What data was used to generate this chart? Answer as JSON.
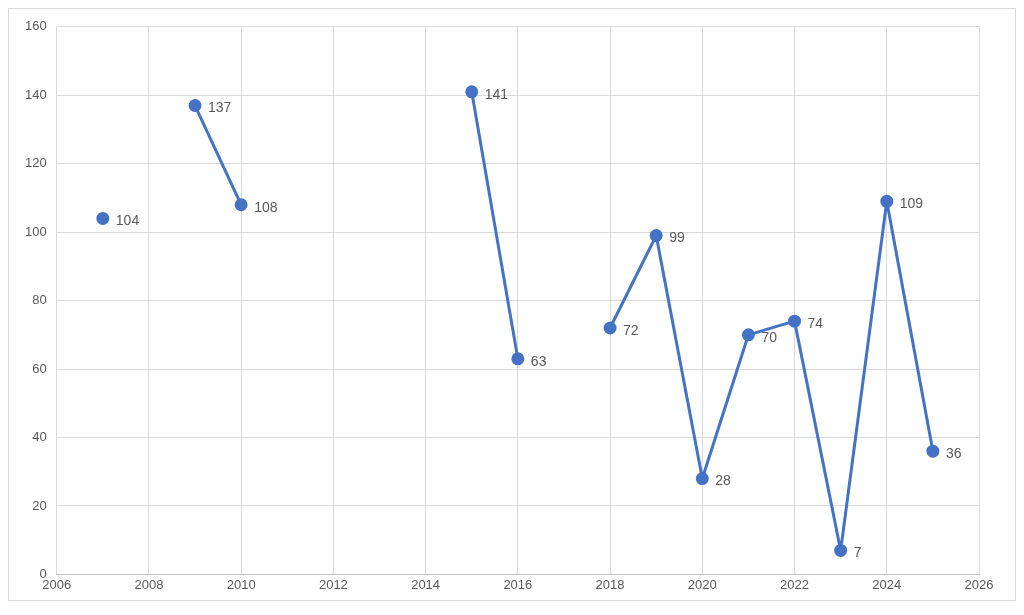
{
  "chart_data": {
    "type": "line",
    "x": [
      2007,
      2008,
      2009,
      2010,
      2011,
      2012,
      2013,
      2014,
      2015,
      2016,
      2017,
      2018,
      2019,
      2020,
      2021,
      2022,
      2023,
      2024,
      2025
    ],
    "series": [
      {
        "color": "#4472c4",
        "values": [
          104,
          null,
          137,
          108,
          null,
          null,
          null,
          null,
          141,
          63,
          null,
          72,
          99,
          28,
          70,
          74,
          7,
          109,
          36
        ]
      }
    ],
    "xlim": [
      2006,
      2026
    ],
    "xticks": [
      2006,
      2008,
      2010,
      2012,
      2014,
      2016,
      2018,
      2020,
      2022,
      2024,
      2026
    ],
    "ylim": [
      0,
      160
    ],
    "yticks": [
      0,
      20,
      40,
      60,
      80,
      100,
      120,
      140,
      160
    ],
    "grid": true,
    "marker": "circle",
    "line_style": "solid",
    "data_labels": true,
    "legend": false
  }
}
